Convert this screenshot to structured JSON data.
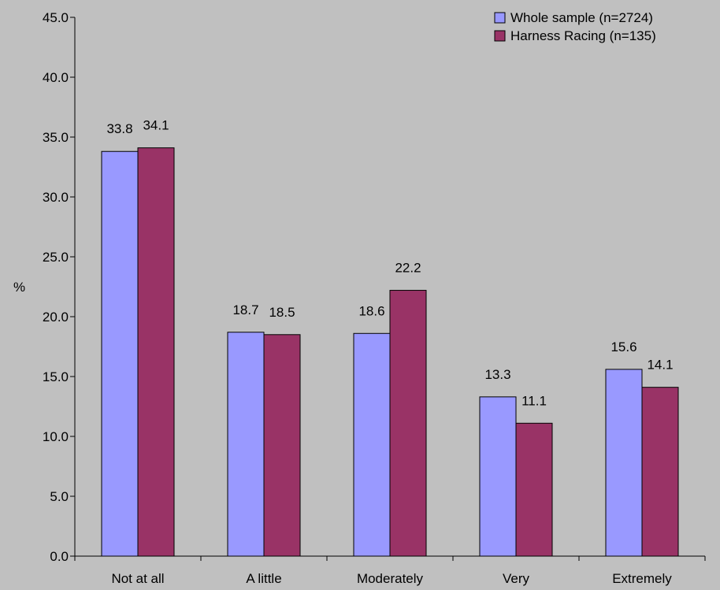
{
  "chart_data": {
    "type": "bar",
    "title": "",
    "xlabel": "",
    "ylabel": "%",
    "ylim": [
      0,
      45
    ],
    "y_ticks": [
      "0.0",
      "5.0",
      "10.0",
      "15.0",
      "20.0",
      "25.0",
      "30.0",
      "35.0",
      "40.0",
      "45.0"
    ],
    "categories": [
      "Not at all",
      "A little",
      "Moderately",
      "Very",
      "Extremely"
    ],
    "series": [
      {
        "name": "Whole sample (n=2724)",
        "color": "#9999ff",
        "values": [
          33.8,
          18.7,
          18.6,
          13.3,
          15.6
        ]
      },
      {
        "name": "Harness Racing (n=135)",
        "color": "#993366",
        "values": [
          34.1,
          18.5,
          22.2,
          11.1,
          14.1
        ]
      }
    ],
    "grid": false,
    "legend_position": "top-right",
    "data_labels": true
  }
}
